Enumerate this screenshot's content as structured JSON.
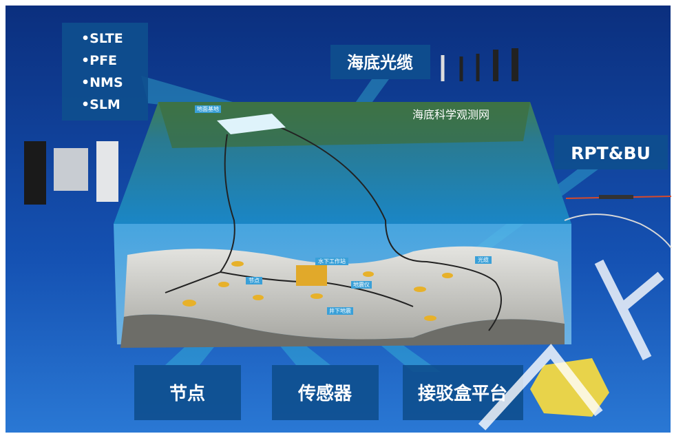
{
  "equipment_list": [
    "•SLTE",
    "•PFE",
    "•NMS",
    "•SLM"
  ],
  "cable_label": "海底光缆",
  "network_label": "海底科学观测网",
  "repeater_label": "RPT&BU",
  "bottom_labels": [
    "节点",
    "传感器",
    "接驳盒平台"
  ],
  "scene_labels": [
    "地面基地",
    "水下工作站",
    "节点",
    "地震仪",
    "光缆",
    "井下地震"
  ]
}
